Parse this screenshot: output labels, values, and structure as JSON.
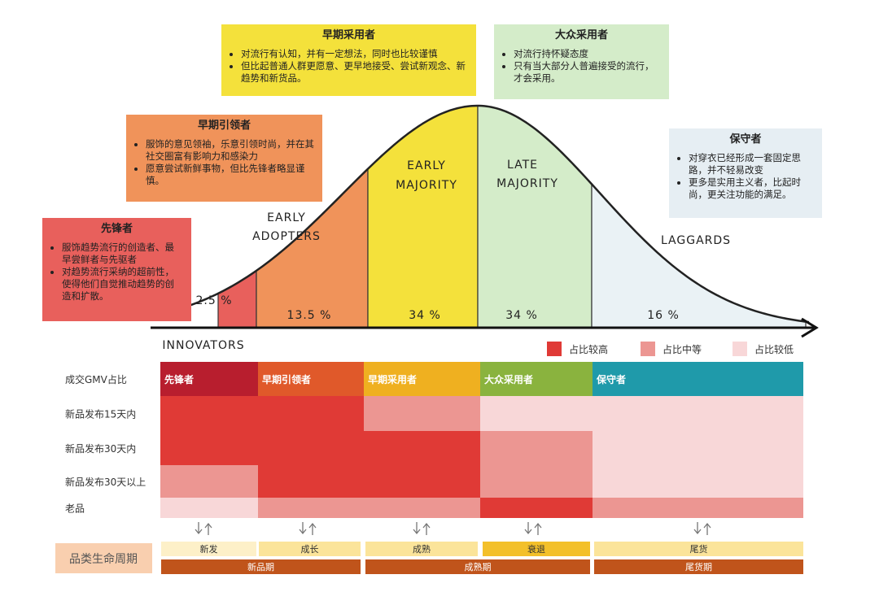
{
  "boxes": {
    "early_adopters": {
      "title": "早期采用者",
      "bullets": [
        "对流行有认知，并有一定想法，同时也比较谨慎",
        "但比起普通人群更愿意、更早地接受、尝试新观念、新趋势和新货品。"
      ]
    },
    "early_majority": {
      "title": "大众采用者",
      "bullets": [
        "对流行持怀疑态度",
        "只有当大部分人普遍接受的流行，才会采用。"
      ]
    },
    "leaders": {
      "title": "早期引领者",
      "bullets": [
        "服饰的意见领袖，乐意引领时尚，并在其社交圈富有影响力和感染力",
        "愿意尝试新鲜事物，但比先锋者略显谨慎。"
      ]
    },
    "laggards": {
      "title": "保守者",
      "bullets": [
        "对穿衣已经形成一套固定思路，并不轻易改变",
        "更多是实用主义者，比起时尚，更关注功能的满足。"
      ]
    },
    "innovators": {
      "title": "先锋者",
      "bullets": [
        "服饰趋势流行的创造者、最早尝鲜者与先驱者",
        "对趋势流行采纳的超前性，使得他们自觉推动趋势的创造和扩散。"
      ]
    }
  },
  "curve": {
    "labels": {
      "innovators": "INNOVATORS",
      "early_adopters": [
        "EARLY",
        "ADOPTERS"
      ],
      "early_majority": [
        "EARLY",
        "MAJORITY"
      ],
      "late_majority": [
        "LATE",
        "MAJORITY"
      ],
      "laggards": "LAGGARDS"
    },
    "shares": [
      "2.5 %",
      "13.5 %",
      "34 %",
      "34 %",
      "16 %"
    ]
  },
  "legend": [
    "占比较高",
    "占比中等",
    "占比较低"
  ],
  "table": {
    "header": [
      "成交GMV占比",
      "先锋者",
      "早期引领者",
      "早期采用者",
      "大众采用者",
      "保守者"
    ],
    "rows": [
      "新品发布15天内",
      "新品发布30天内",
      "新品发布30天以上",
      "老品"
    ]
  },
  "lifecycle": {
    "title": "品类生命周期",
    "stages": [
      "新发",
      "成长",
      "成熟",
      "衰退",
      "尾货"
    ],
    "periods": [
      "新品期",
      "成熟期",
      "尾货期"
    ]
  }
}
